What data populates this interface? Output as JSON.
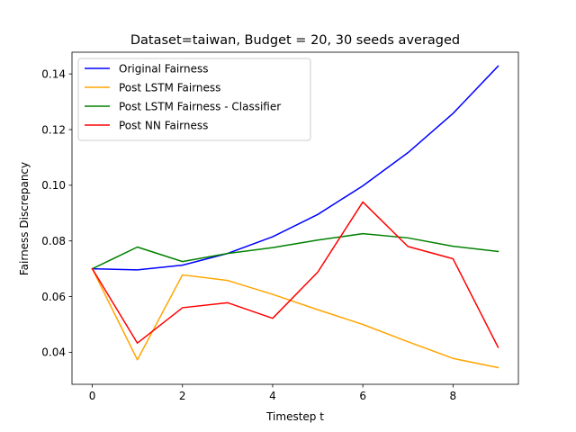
{
  "chart_data": {
    "type": "line",
    "title": "Dataset=taiwan, Budget = 20, 30 seeds averaged",
    "xlabel": "Timestep t",
    "ylabel": "Fairness Discrepancy",
    "xlim": [
      -0.45,
      9.45
    ],
    "ylim": [
      0.0285,
      0.1478
    ],
    "xticks": [
      0,
      2,
      4,
      6,
      8
    ],
    "xtick_labels": [
      "0",
      "2",
      "4",
      "6",
      "8"
    ],
    "yticks": [
      0.04,
      0.06,
      0.08,
      0.1,
      0.12,
      0.14
    ],
    "ytick_labels": [
      "0.04",
      "0.06",
      "0.08",
      "0.10",
      "0.12",
      "0.14"
    ],
    "grid": false,
    "legend_position": "top-left",
    "x": [
      0,
      1,
      2,
      3,
      4,
      5,
      6,
      7,
      8,
      9
    ],
    "series": [
      {
        "name": "Original Fairness",
        "color": "#0000ff",
        "values": [
          0.07,
          0.0696,
          0.0713,
          0.0755,
          0.0815,
          0.0895,
          0.0998,
          0.1117,
          0.1258,
          0.1428
        ]
      },
      {
        "name": "Post LSTM Fairness",
        "color": "#ffa500",
        "values": [
          0.07,
          0.0373,
          0.0678,
          0.0658,
          0.0608,
          0.0553,
          0.05,
          0.0438,
          0.0378,
          0.0345
        ]
      },
      {
        "name": "Post LSTM Fairness - Classifier",
        "color": "#008000",
        "values": [
          0.07,
          0.0778,
          0.0726,
          0.0755,
          0.0776,
          0.0803,
          0.0826,
          0.0811,
          0.0781,
          0.0762
        ]
      },
      {
        "name": "Post NN Fairness",
        "color": "#ff0000",
        "values": [
          0.07,
          0.0433,
          0.056,
          0.0578,
          0.0522,
          0.0688,
          0.094,
          0.078,
          0.0736,
          0.0418
        ]
      }
    ]
  }
}
